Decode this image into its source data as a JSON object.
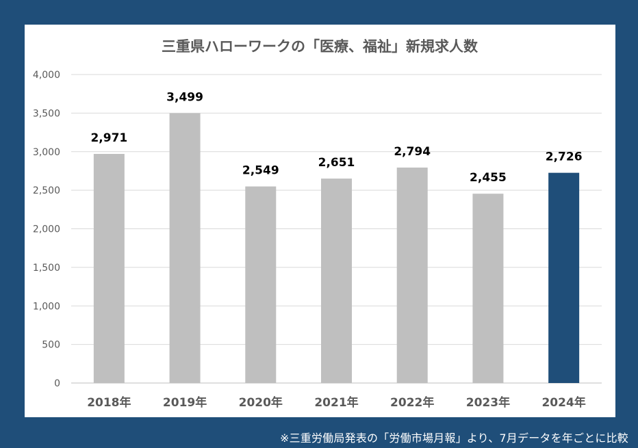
{
  "chart_data": {
    "type": "bar",
    "title": "三重県ハローワークの「医療、福祉」新規求人数",
    "categories": [
      "2018年",
      "2019年",
      "2020年",
      "2021年",
      "2022年",
      "2023年",
      "2024年"
    ],
    "values": [
      2971,
      3499,
      2549,
      2651,
      2794,
      2455,
      2726
    ],
    "value_labels": [
      "2,971",
      "3,499",
      "2,549",
      "2,651",
      "2,794",
      "2,455",
      "2,726"
    ],
    "ylim": [
      0,
      4000
    ],
    "yticks": [
      "0",
      "500",
      "1,000",
      "1,500",
      "2,000",
      "2,500",
      "3,000",
      "3,500",
      "4,000"
    ],
    "xlabel": "",
    "ylabel": "",
    "grid": true,
    "bar_color": "#bfbfbf",
    "highlight_color": "#1f4e79",
    "highlight_index": 6
  },
  "footnote": "※三重労働局発表の「労働市場月報」より、7月データを年ごとに比較",
  "colors": {
    "background": "#1f4e79",
    "panel": "#ffffff",
    "text": "#595959",
    "label": "#000000"
  }
}
